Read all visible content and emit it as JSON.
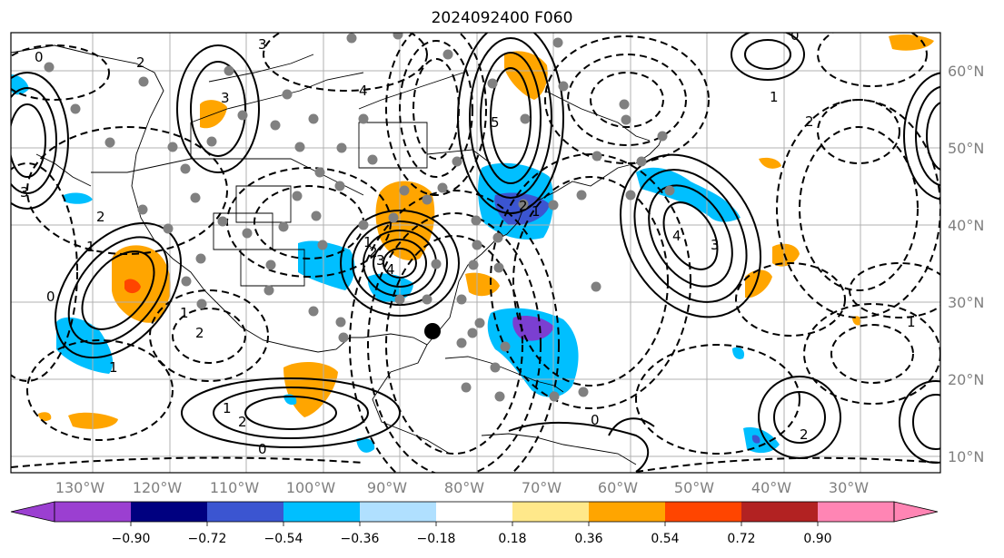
{
  "title": "2024092400 F060",
  "map": {
    "projection": "equirectangular",
    "lon_range": [
      -143,
      -22
    ],
    "lat_range": [
      8,
      65
    ],
    "gridlines": true,
    "longitude_labels": [
      "130°W",
      "120°W",
      "110°W",
      "100°W",
      "90°W",
      "80°W",
      "70°W",
      "60°W",
      "50°W",
      "40°W",
      "30°W"
    ],
    "latitude_labels": [
      "60°N",
      "50°N",
      "40°N",
      "30°N",
      "20°N",
      "10°N"
    ],
    "marker": {
      "name": "black-dot",
      "lon": -85,
      "lat": 26.5
    },
    "contour_labels": [
      "0",
      "3",
      "2",
      "3",
      "4",
      "5",
      "1",
      "2",
      "3",
      "4",
      "0",
      "1",
      "2",
      "3",
      "1",
      "2",
      "0",
      "1",
      "2",
      "3",
      "2",
      "1",
      "4",
      "1",
      "0",
      "1",
      "2",
      "0",
      "2",
      "1"
    ]
  },
  "colorbar": {
    "tick_labels": [
      "−0.90",
      "−0.72",
      "−0.54",
      "−0.36",
      "−0.18",
      "0.18",
      "0.36",
      "0.54",
      "0.72",
      "0.90"
    ],
    "colors": [
      "#9b3fd1",
      "#000080",
      "#3b55d1",
      "#00bfff",
      "#b0e0ff",
      "#ffffff",
      "#ffe88a",
      "#ffa500",
      "#ff4500",
      "#b22222",
      "#ff85b4"
    ]
  },
  "colors": {
    "orange": "#ffa500",
    "red": "#ff4500",
    "cyan": "#00bfff",
    "blue": "#3b55d1",
    "purple": "#7b3fd1",
    "station_dot": "#808080",
    "gridline": "#b0b0b0",
    "label_gray": "#7f7f7f"
  }
}
